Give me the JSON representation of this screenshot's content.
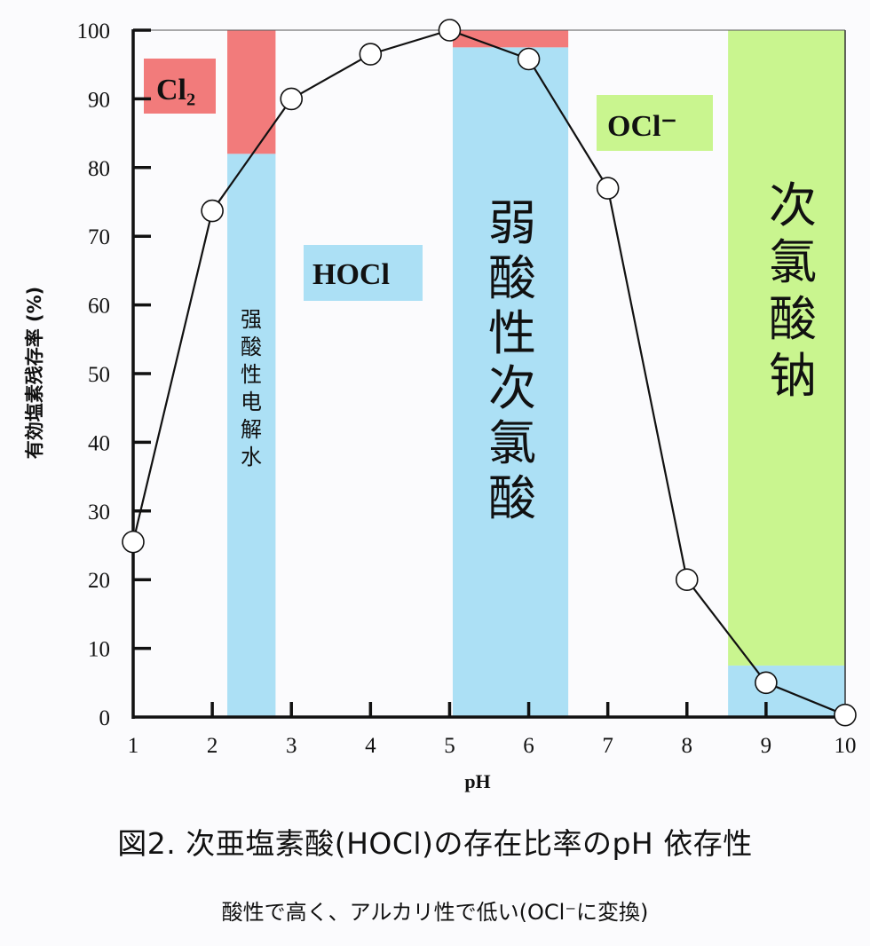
{
  "chart_data": {
    "type": "line",
    "title": "図2. 次亜塩素酸(HOCl)の存在比率のpH 依存性",
    "subtitle": "酸性で高く、アルカリ性で低い(OCl⁻に変換)",
    "xlabel": "pH",
    "ylabel": "有効塩素残存率 (%)",
    "xlim": [
      1,
      10
    ],
    "ylim": [
      0,
      100
    ],
    "x_ticks": [
      1,
      2,
      3,
      4,
      5,
      6,
      7,
      8,
      9,
      10
    ],
    "y_ticks": [
      0,
      10,
      20,
      30,
      40,
      50,
      60,
      70,
      80,
      90,
      100
    ],
    "grid": false,
    "series": [
      {
        "name": "有効塩素残存率",
        "marker": "open-circle",
        "x": [
          1,
          2,
          3,
          4,
          5,
          6,
          7,
          8,
          9,
          10
        ],
        "values": [
          25.5,
          73.7,
          90,
          96.5,
          100,
          95.8,
          77,
          20,
          5,
          0.3
        ]
      }
    ],
    "bands": [
      {
        "name": "强酸性电解水",
        "x_range": [
          2.19,
          2.8
        ],
        "segments": [
          {
            "species": "HOCl",
            "y_range": [
              0,
              82
            ],
            "color": "#ace0f5"
          },
          {
            "species": "Cl2",
            "y_range": [
              82,
              100
            ],
            "color": "#f27b7b"
          }
        ]
      },
      {
        "name": "弱酸性次氯酸",
        "x_range": [
          5.04,
          6.5
        ],
        "segments": [
          {
            "species": "HOCl",
            "y_range": [
              0,
              97.5
            ],
            "color": "#ace0f5"
          },
          {
            "species": "Cl2",
            "y_range": [
              97.5,
              100
            ],
            "color": "#f27b7b"
          }
        ]
      },
      {
        "name": "次氯酸钠",
        "x_range": [
          8.52,
          10
        ],
        "segments": [
          {
            "species": "HOCl",
            "y_range": [
              0,
              7.5
            ],
            "color": "#ace0f5"
          },
          {
            "species": "OCl-",
            "y_range": [
              7.5,
              100
            ],
            "color": "#c9f58f"
          }
        ]
      }
    ],
    "species_labels": [
      {
        "text": "Cl₂",
        "color": "#f27b7b"
      },
      {
        "text": "HOCl",
        "color": "#ace0f5"
      },
      {
        "text": "OCl⁻",
        "color": "#c9f58f"
      }
    ],
    "annotations": [
      "强酸性电解水",
      "弱酸性次氯酸",
      "次氯酸钠"
    ]
  },
  "colors": {
    "hocl_blue": "#ace0f5",
    "cl2_red": "#f27b7b",
    "ocl_green": "#c9f58f",
    "axis": "#111111",
    "background": "#fbfbfd"
  }
}
